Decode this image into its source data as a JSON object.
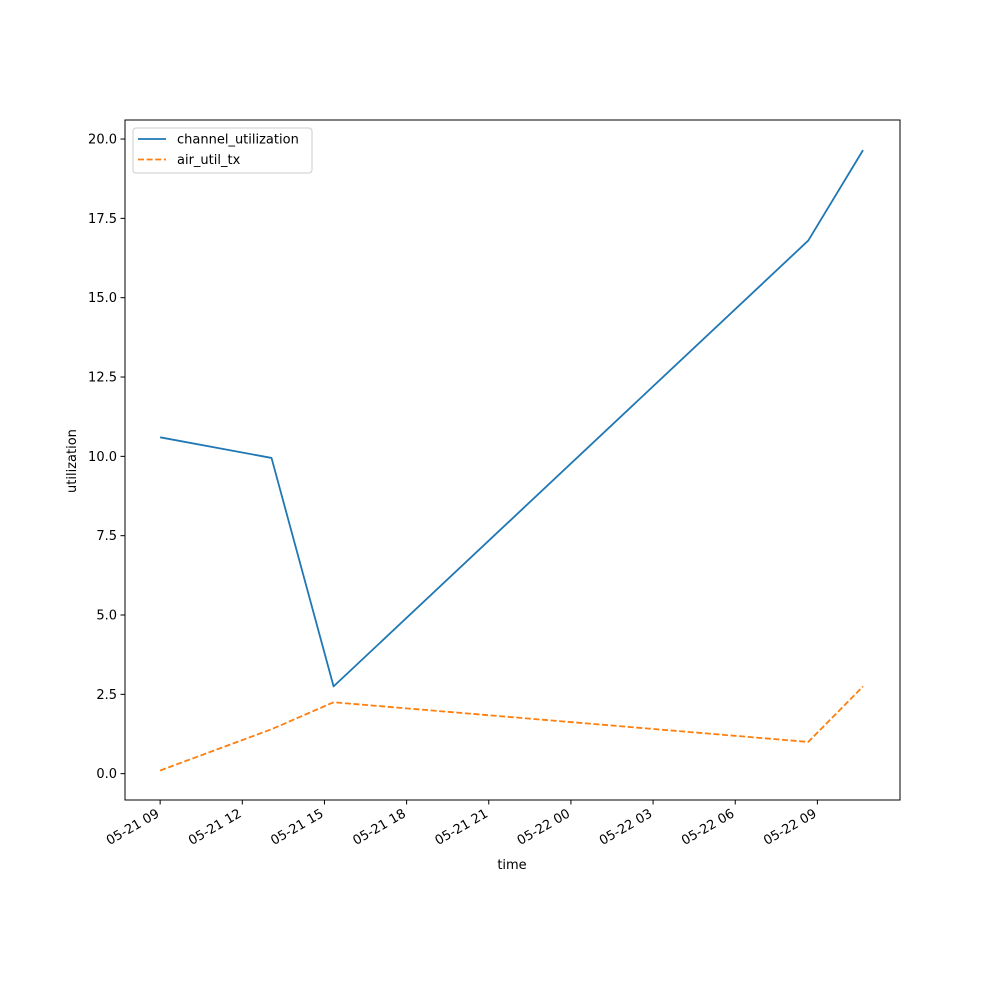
{
  "chart_data": {
    "type": "line",
    "xlabel": "time",
    "ylabel": "utilization",
    "x_type": "datetime",
    "x_tick_labels": [
      "05-21 09",
      "05-21 12",
      "05-21 15",
      "05-21 18",
      "05-21 21",
      "05-22 00",
      "05-22 03",
      "05-22 06",
      "05-22 09"
    ],
    "x_ticks": [
      "2023-05-21T09:00",
      "2023-05-21T12:00",
      "2023-05-21T15:00",
      "2023-05-21T18:00",
      "2023-05-21T21:00",
      "2023-05-22T00:00",
      "2023-05-22T03:00",
      "2023-05-22T06:00",
      "2023-05-22T09:00"
    ],
    "xlim": [
      "2023-05-21T07:43",
      "2023-05-22T12:01"
    ],
    "ylim": [
      -0.83,
      20.6
    ],
    "y_ticks": [
      0.0,
      2.5,
      5.0,
      7.5,
      10.0,
      12.5,
      15.0,
      17.5,
      20.0
    ],
    "y_tick_labels": [
      "0.0",
      "2.5",
      "5.0",
      "7.5",
      "10.0",
      "12.5",
      "15.0",
      "17.5",
      "20.0"
    ],
    "legend_position": "top-left",
    "grid": false,
    "series": [
      {
        "name": "channel_utilization",
        "color": "#1f77b4",
        "style": "solid",
        "x": [
          "2023-05-21T09:00",
          "2023-05-21T13:04",
          "2023-05-21T15:20",
          "2023-05-22T08:40",
          "2023-05-22T10:40"
        ],
        "y": [
          10.6,
          9.95,
          2.75,
          16.8,
          19.65
        ]
      },
      {
        "name": "air_util_tx",
        "color": "#ff7f0e",
        "style": "dashed",
        "x": [
          "2023-05-21T09:00",
          "2023-05-21T13:04",
          "2023-05-21T15:20",
          "2023-05-22T08:40",
          "2023-05-22T10:40"
        ],
        "y": [
          0.1,
          1.4,
          2.25,
          1.0,
          2.75
        ]
      }
    ]
  }
}
